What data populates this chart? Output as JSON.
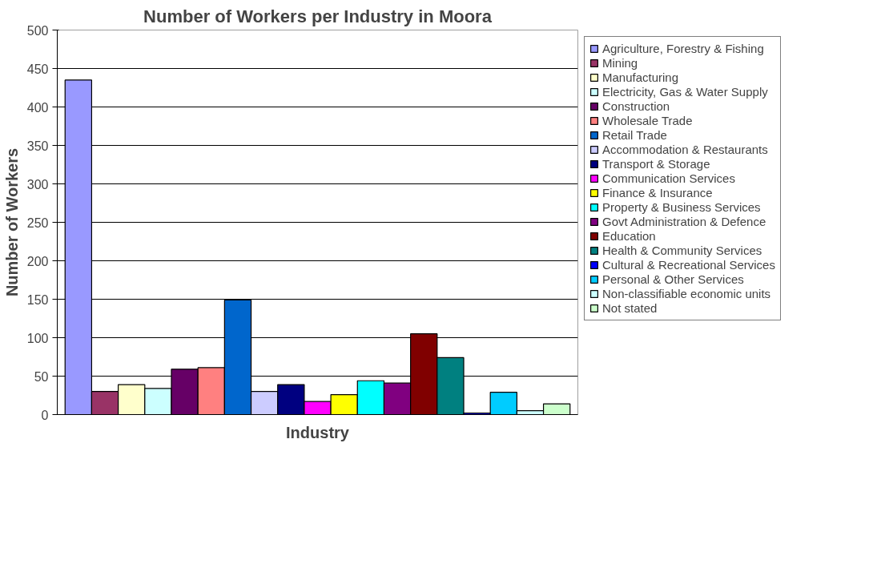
{
  "chart_data": {
    "type": "bar",
    "title": "Number of Workers per Industry in Moora",
    "xlabel": "Industry",
    "ylabel": "Number of Workers",
    "categories": [
      null
    ],
    "series": [
      {
        "name": "Agriculture, Forestry & Fishing",
        "color": "#9999ff",
        "values": [
          435
        ]
      },
      {
        "name": "Mining",
        "color": "#993366",
        "values": [
          30
        ]
      },
      {
        "name": "Manufacturing",
        "color": "#ffffcc",
        "values": [
          39
        ]
      },
      {
        "name": "Electricity, Gas & Water Supply",
        "color": "#ccffff",
        "values": [
          34
        ]
      },
      {
        "name": "Construction",
        "color": "#660066",
        "values": [
          59
        ]
      },
      {
        "name": "Wholesale Trade",
        "color": "#ff8080",
        "values": [
          61
        ]
      },
      {
        "name": "Retail Trade",
        "color": "#0066cc",
        "values": [
          149
        ]
      },
      {
        "name": "Accommodation & Restaurants",
        "color": "#ccccff",
        "values": [
          30
        ]
      },
      {
        "name": "Transport & Storage",
        "color": "#000080",
        "values": [
          39
        ]
      },
      {
        "name": "Communication Services",
        "color": "#ff00ff",
        "values": [
          17
        ]
      },
      {
        "name": "Finance & Insurance",
        "color": "#ffff00",
        "values": [
          26
        ]
      },
      {
        "name": "Property & Business Services",
        "color": "#00ffff",
        "values": [
          44
        ]
      },
      {
        "name": "Govt Administration & Defence",
        "color": "#800080",
        "values": [
          41
        ]
      },
      {
        "name": "Education",
        "color": "#800000",
        "values": [
          105
        ]
      },
      {
        "name": "Health & Community Services",
        "color": "#008080",
        "values": [
          74
        ]
      },
      {
        "name": "Cultural & Recreational Services",
        "color": "#0000ff",
        "values": [
          2
        ]
      },
      {
        "name": "Personal & Other Services",
        "color": "#00ccff",
        "values": [
          29
        ]
      },
      {
        "name": "Non-classifiable economic units",
        "color": "#ccffff",
        "values": [
          5
        ]
      },
      {
        "name": "Not stated",
        "color": "#ccffcc",
        "values": [
          14
        ]
      }
    ],
    "ylim": [
      0,
      500
    ],
    "yticks": [
      0,
      50,
      100,
      150,
      200,
      250,
      300,
      350,
      400,
      450,
      500
    ],
    "grid": "y",
    "legend": "right"
  }
}
